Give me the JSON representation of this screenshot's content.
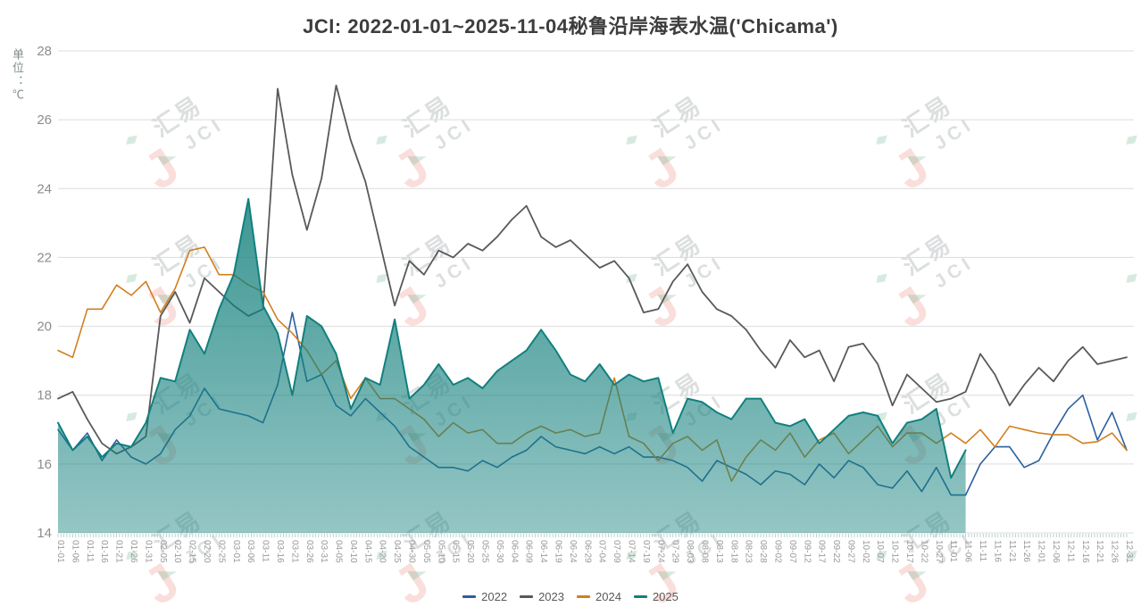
{
  "title": "JCI: 2022-01-01~2025-11-04秘鲁沿岸海表水温('Chicama')",
  "y_axis_unit": "单位：℃",
  "watermark": {
    "logo_glyph": "J",
    "text_primary": "汇易",
    "text_secondary": "JCI",
    "logo_color": "rgba(232,88,76,0.20)",
    "text_color": "rgba(148,157,157,0.33)",
    "accent_green": "rgba(110,180,140,0.28)"
  },
  "chart_data": {
    "type": "line",
    "title": "JCI: 2022-01-01~2025-11-04秘鲁沿岸海表水温('Chicama')",
    "ylabel": "单位：℃",
    "xlabel": "",
    "ylim": [
      14,
      28
    ],
    "y_ticks": [
      28,
      26,
      24,
      22,
      20,
      18,
      16,
      14
    ],
    "grid": true,
    "legend_position": "bottom",
    "x_labels": [
      "01-01",
      "01-06",
      "01-11",
      "01-16",
      "01-21",
      "01-26",
      "01-31",
      "02-05",
      "02-10",
      "02-15",
      "02-20",
      "02-25",
      "03-01",
      "03-06",
      "03-11",
      "03-16",
      "03-21",
      "03-26",
      "03-31",
      "04-05",
      "04-10",
      "04-15",
      "04-20",
      "04-25",
      "04-30",
      "05-05",
      "05-10",
      "05-15",
      "05-20",
      "05-25",
      "05-30",
      "06-04",
      "06-09",
      "06-14",
      "06-19",
      "06-24",
      "06-29",
      "07-04",
      "07-09",
      "07-14",
      "07-19",
      "07-24",
      "07-29",
      "08-03",
      "08-08",
      "08-13",
      "08-18",
      "08-23",
      "08-28",
      "09-02",
      "09-07",
      "09-12",
      "09-17",
      "09-22",
      "09-27",
      "10-02",
      "10-07",
      "10-12",
      "10-17",
      "10-22",
      "10-27",
      "11-01",
      "11-06",
      "11-11",
      "11-16",
      "11-21",
      "11-26",
      "12-01",
      "12-06",
      "12-11",
      "12-16",
      "12-21",
      "12-26",
      "12-31"
    ],
    "axis_style": {
      "grid_color": "#dcdcdc",
      "label_color": "#999999",
      "ytick_color": "#8c8c8c",
      "day_tick_color": "#a9c9c6"
    },
    "series": [
      {
        "name": "2022",
        "type": "line",
        "color": "#2d5f9f",
        "values": [
          17.0,
          16.4,
          16.9,
          16.1,
          16.7,
          16.2,
          16.0,
          16.3,
          17.0,
          17.4,
          18.2,
          17.6,
          17.5,
          17.4,
          17.2,
          18.3,
          20.4,
          18.4,
          18.6,
          17.7,
          17.4,
          17.9,
          17.5,
          17.1,
          16.5,
          16.2,
          15.9,
          15.9,
          15.8,
          16.1,
          15.9,
          16.2,
          16.4,
          16.8,
          16.5,
          16.4,
          16.3,
          16.5,
          16.3,
          16.5,
          16.2,
          16.2,
          16.1,
          15.9,
          15.5,
          16.1,
          15.9,
          15.7,
          15.4,
          15.8,
          15.7,
          15.4,
          16.0,
          15.6,
          16.1,
          15.9,
          15.4,
          15.3,
          15.8,
          15.2,
          15.9,
          15.1,
          15.1,
          16.0,
          16.5,
          16.5,
          15.9,
          16.1,
          16.9,
          17.6,
          18.0,
          16.7,
          17.5,
          16.4
        ]
      },
      {
        "name": "2023",
        "type": "line",
        "color": "#58595b",
        "values": [
          17.9,
          18.1,
          17.3,
          16.6,
          16.3,
          16.5,
          16.8,
          20.3,
          21.0,
          20.1,
          21.4,
          21.0,
          20.6,
          20.3,
          20.5,
          26.9,
          24.4,
          22.8,
          24.3,
          27.0,
          25.4,
          24.2,
          22.4,
          20.6,
          21.9,
          21.5,
          22.2,
          22.0,
          22.4,
          22.2,
          22.6,
          23.1,
          23.5,
          22.6,
          22.3,
          22.5,
          22.1,
          21.7,
          21.9,
          21.4,
          20.4,
          20.5,
          21.3,
          21.8,
          21.0,
          20.5,
          20.3,
          19.9,
          19.3,
          18.8,
          19.6,
          19.1,
          19.3,
          18.4,
          19.4,
          19.5,
          18.9,
          17.7,
          18.6,
          18.2,
          17.8,
          17.9,
          18.1,
          19.2,
          18.6,
          17.7,
          18.3,
          18.8,
          18.4,
          19.0,
          19.4,
          18.9,
          19.0,
          19.1
        ]
      },
      {
        "name": "2024",
        "type": "line",
        "color": "#d27f1e",
        "values": [
          19.3,
          19.1,
          20.5,
          20.5,
          21.2,
          20.9,
          21.3,
          20.4,
          21.1,
          22.2,
          22.3,
          21.5,
          21.5,
          21.2,
          21.0,
          20.2,
          19.8,
          19.3,
          18.6,
          19.0,
          17.9,
          18.5,
          17.9,
          17.9,
          17.6,
          17.3,
          16.8,
          17.2,
          16.9,
          17.0,
          16.6,
          16.6,
          16.9,
          17.1,
          16.9,
          17.0,
          16.8,
          16.9,
          18.5,
          16.8,
          16.6,
          16.1,
          16.6,
          16.8,
          16.4,
          16.7,
          15.5,
          16.2,
          16.7,
          16.4,
          16.9,
          16.2,
          16.7,
          16.9,
          16.3,
          16.7,
          17.1,
          16.5,
          16.9,
          16.9,
          16.6,
          16.9,
          16.6,
          17.0,
          16.5,
          17.1,
          17.0,
          16.9,
          16.85,
          16.85,
          16.6,
          16.65,
          16.9,
          16.4
        ]
      },
      {
        "name": "2025",
        "type": "area",
        "color": "#12807d",
        "end_date": "11-04",
        "values": [
          17.2,
          16.4,
          16.8,
          16.2,
          16.6,
          16.5,
          17.2,
          18.5,
          18.4,
          19.9,
          19.2,
          20.5,
          21.5,
          23.7,
          20.6,
          19.8,
          18.0,
          20.3,
          20.0,
          19.2,
          17.6,
          18.5,
          18.3,
          20.2,
          17.9,
          18.3,
          18.9,
          18.3,
          18.5,
          18.2,
          18.7,
          19.0,
          19.3,
          19.9,
          19.3,
          18.6,
          18.4,
          18.9,
          18.3,
          18.6,
          18.4,
          18.5,
          16.9,
          17.9,
          17.8,
          17.5,
          17.3,
          17.9,
          17.9,
          17.2,
          17.1,
          17.3,
          16.6,
          17.0,
          17.4,
          17.5,
          17.4,
          16.6,
          17.2,
          17.3,
          17.6,
          15.6,
          16.4,
          null,
          null,
          null,
          null,
          null,
          null,
          null,
          null,
          null,
          null,
          null
        ]
      }
    ]
  }
}
